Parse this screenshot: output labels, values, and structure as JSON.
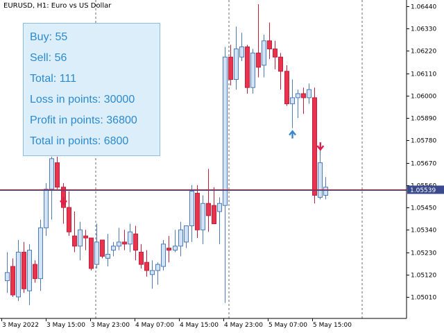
{
  "header": {
    "title": "EURUSD, H1:  Euro vs US Dollar"
  },
  "stats": {
    "buy": "Buy: 55",
    "sell": "Sell: 56",
    "total": "Total: 111",
    "loss": "Loss in points: 30000",
    "profit": "Profit in points: 36800",
    "total_points": "Total in points: 6800"
  },
  "chart_data": {
    "type": "candlestick",
    "symbol": "EURUSD",
    "timeframe": "H1",
    "ylim": [
      1.0493,
      1.0647
    ],
    "y_ticks": [
      "1.06440",
      "1.06330",
      "1.06220",
      "1.06110",
      "1.06000",
      "1.05890",
      "1.05780",
      "1.05670",
      "1.05560",
      "1.05450",
      "1.05340",
      "1.05230",
      "1.05120",
      "1.05010"
    ],
    "x_ticks": [
      "3 May 2022",
      "3 May 15:00",
      "3 May 23:00",
      "4 May 07:00",
      "4 May 15:00",
      "4 May 23:00",
      "5 May 07:00",
      "5 May 15:00"
    ],
    "current_price": "1.05539",
    "current_price_value": 1.05539,
    "colors": {
      "bull_body": "#d3e3f7",
      "bull_border": "#4a7ab8",
      "bear_body": "#e8334e",
      "bear_border": "#c21d3a",
      "price_line": "#c21d3a",
      "price_line_shadow": "#3a4a8c",
      "sell_arrow": "#e01e4a",
      "buy_arrow": "#3a86c8",
      "separator": "#6a6a6a"
    },
    "candles": [
      {
        "o": 1.0509,
        "h": 1.0523,
        "l": 1.0503,
        "c": 1.0513
      },
      {
        "o": 1.0516,
        "h": 1.052,
        "l": 1.0501,
        "c": 1.0502
      },
      {
        "o": 1.0501,
        "h": 1.0529,
        "l": 1.0499,
        "c": 1.0523
      },
      {
        "o": 1.0523,
        "h": 1.0528,
        "l": 1.0503,
        "c": 1.0505
      },
      {
        "o": 1.0504,
        "h": 1.0527,
        "l": 1.0497,
        "c": 1.0524
      },
      {
        "o": 1.0517,
        "h": 1.0519,
        "l": 1.0508,
        "c": 1.051
      },
      {
        "o": 1.051,
        "h": 1.0539,
        "l": 1.0504,
        "c": 1.0535
      },
      {
        "o": 1.0535,
        "h": 1.0557,
        "l": 1.0531,
        "c": 1.0554
      },
      {
        "o": 1.0554,
        "h": 1.057,
        "l": 1.0539,
        "c": 1.0569
      },
      {
        "o": 1.0567,
        "h": 1.057,
        "l": 1.0554,
        "c": 1.0555
      },
      {
        "o": 1.0555,
        "h": 1.0557,
        "l": 1.0537,
        "c": 1.0545
      },
      {
        "o": 1.0545,
        "h": 1.0553,
        "l": 1.0531,
        "c": 1.0533
      },
      {
        "o": 1.0531,
        "h": 1.0543,
        "l": 1.0523,
        "c": 1.0526
      },
      {
        "o": 1.0526,
        "h": 1.0538,
        "l": 1.0519,
        "c": 1.0534
      },
      {
        "o": 1.0531,
        "h": 1.0534,
        "l": 1.0524,
        "c": 1.053
      },
      {
        "o": 1.053,
        "h": 1.053,
        "l": 1.0514,
        "c": 1.0515
      },
      {
        "o": 1.0517,
        "h": 1.0537,
        "l": 1.0515,
        "c": 1.0528
      },
      {
        "o": 1.0529,
        "h": 1.0529,
        "l": 1.052,
        "c": 1.0521
      },
      {
        "o": 1.052,
        "h": 1.0532,
        "l": 1.0516,
        "c": 1.0522
      },
      {
        "o": 1.0524,
        "h": 1.0528,
        "l": 1.0521,
        "c": 1.0526
      },
      {
        "o": 1.0526,
        "h": 1.0535,
        "l": 1.0524,
        "c": 1.0528
      },
      {
        "o": 1.0528,
        "h": 1.0534,
        "l": 1.0524,
        "c": 1.0527
      },
      {
        "o": 1.0527,
        "h": 1.0537,
        "l": 1.0523,
        "c": 1.0533
      },
      {
        "o": 1.0532,
        "h": 1.0536,
        "l": 1.0519,
        "c": 1.0524
      },
      {
        "o": 1.0523,
        "h": 1.0527,
        "l": 1.0515,
        "c": 1.0517
      },
      {
        "o": 1.0518,
        "h": 1.0524,
        "l": 1.0511,
        "c": 1.0514
      },
      {
        "o": 1.0512,
        "h": 1.0519,
        "l": 1.0505,
        "c": 1.0514
      },
      {
        "o": 1.0514,
        "h": 1.0518,
        "l": 1.0507,
        "c": 1.0517
      },
      {
        "o": 1.0516,
        "h": 1.0529,
        "l": 1.0514,
        "c": 1.0527
      },
      {
        "o": 1.0525,
        "h": 1.0531,
        "l": 1.0518,
        "c": 1.0524
      },
      {
        "o": 1.0524,
        "h": 1.0534,
        "l": 1.0523,
        "c": 1.0526
      },
      {
        "o": 1.0526,
        "h": 1.0538,
        "l": 1.0521,
        "c": 1.0534
      },
      {
        "o": 1.0528,
        "h": 1.0536,
        "l": 1.0525,
        "c": 1.0536
      },
      {
        "o": 1.0536,
        "h": 1.0556,
        "l": 1.0528,
        "c": 1.0553
      },
      {
        "o": 1.0552,
        "h": 1.0556,
        "l": 1.053,
        "c": 1.0534
      },
      {
        "o": 1.0534,
        "h": 1.0551,
        "l": 1.0527,
        "c": 1.0547
      },
      {
        "o": 1.0547,
        "h": 1.0564,
        "l": 1.0533,
        "c": 1.0541
      },
      {
        "o": 1.0546,
        "h": 1.0555,
        "l": 1.0537,
        "c": 1.0537
      },
      {
        "o": 1.0543,
        "h": 1.055,
        "l": 1.0527,
        "c": 1.0547
      },
      {
        "o": 1.0546,
        "h": 1.0624,
        "l": 1.0498,
        "c": 1.0619
      },
      {
        "o": 1.0619,
        "h": 1.0625,
        "l": 1.0605,
        "c": 1.0608
      },
      {
        "o": 1.0608,
        "h": 1.0634,
        "l": 1.0603,
        "c": 1.0623
      },
      {
        "o": 1.0619,
        "h": 1.0631,
        "l": 1.0617,
        "c": 1.0624
      },
      {
        "o": 1.0624,
        "h": 1.0625,
        "l": 1.0601,
        "c": 1.0604
      },
      {
        "o": 1.0604,
        "h": 1.0623,
        "l": 1.0601,
        "c": 1.0621
      },
      {
        "o": 1.0621,
        "h": 1.0645,
        "l": 1.0609,
        "c": 1.0614
      },
      {
        "o": 1.0615,
        "h": 1.063,
        "l": 1.0609,
        "c": 1.0627
      },
      {
        "o": 1.0627,
        "h": 1.0636,
        "l": 1.0618,
        "c": 1.0623
      },
      {
        "o": 1.0623,
        "h": 1.0627,
        "l": 1.0613,
        "c": 1.0619
      },
      {
        "o": 1.0619,
        "h": 1.0621,
        "l": 1.0603,
        "c": 1.0612
      },
      {
        "o": 1.0612,
        "h": 1.0615,
        "l": 1.0595,
        "c": 1.0596
      },
      {
        "o": 1.0596,
        "h": 1.0608,
        "l": 1.0584,
        "c": 1.0599
      },
      {
        "o": 1.0599,
        "h": 1.0603,
        "l": 1.0589,
        "c": 1.0601
      },
      {
        "o": 1.0601,
        "h": 1.0604,
        "l": 1.0591,
        "c": 1.0599
      },
      {
        "o": 1.0599,
        "h": 1.0606,
        "l": 1.0596,
        "c": 1.0603
      },
      {
        "o": 1.0599,
        "h": 1.0604,
        "l": 1.0547,
        "c": 1.0551
      },
      {
        "o": 1.055,
        "h": 1.0574,
        "l": 1.0549,
        "c": 1.0567
      },
      {
        "o": 1.0551,
        "h": 1.056,
        "l": 1.0549,
        "c": 1.0555
      }
    ],
    "signals": [
      {
        "type": "sell",
        "index": 10,
        "price": 1.0548
      },
      {
        "type": "buy",
        "index": 51,
        "price": 1.0581
      },
      {
        "type": "sell",
        "index": 56,
        "price": 1.0575
      }
    ]
  }
}
